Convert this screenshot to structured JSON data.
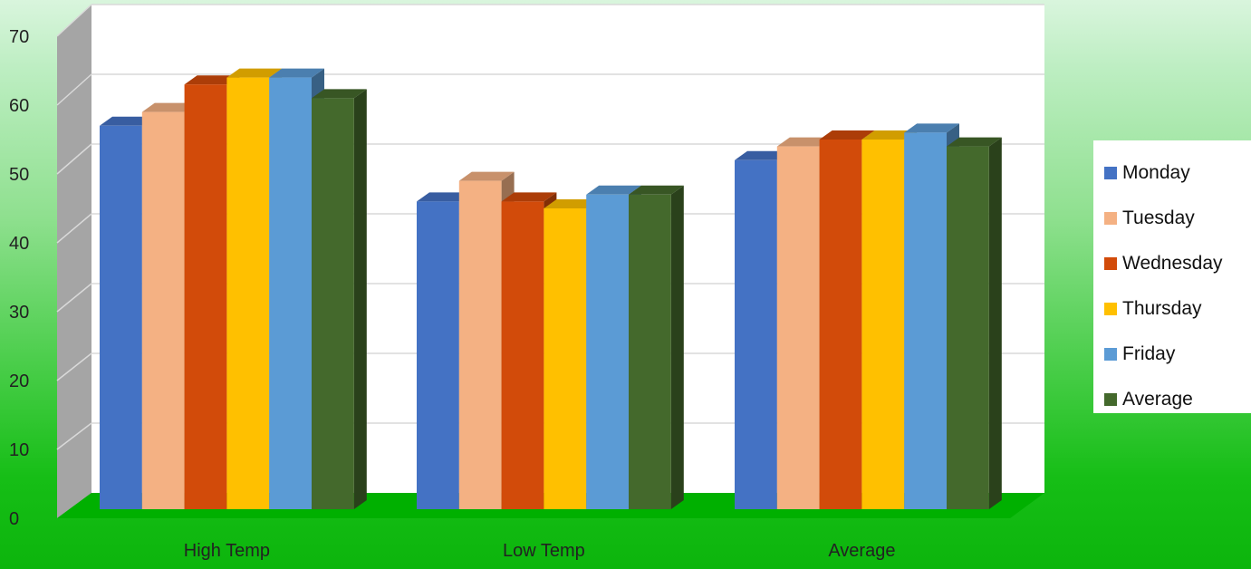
{
  "chart_data": {
    "type": "bar",
    "title": "",
    "xlabel": "",
    "ylabel": "",
    "categories": [
      "High Temp",
      "Low Temp",
      "Average"
    ],
    "ylim": [
      0,
      70
    ],
    "yticks": [
      0,
      10,
      20,
      30,
      40,
      50,
      60,
      70
    ],
    "grid": true,
    "legend_position": "right",
    "series": [
      {
        "name": "Monday",
        "color": "#4472c4",
        "values": [
          57,
          46,
          52
        ]
      },
      {
        "name": "Tuesday",
        "color": "#f4b183",
        "values": [
          59,
          49,
          54
        ]
      },
      {
        "name": "Wednesday",
        "color": "#d24b0a",
        "values": [
          63,
          46,
          55
        ]
      },
      {
        "name": "Thursday",
        "color": "#ffc000",
        "values": [
          64,
          45,
          55
        ]
      },
      {
        "name": "Friday",
        "color": "#5b9bd5",
        "values": [
          64,
          47,
          56
        ]
      },
      {
        "name": "Average",
        "color": "#44692c",
        "values": [
          61,
          47,
          54
        ]
      }
    ]
  }
}
